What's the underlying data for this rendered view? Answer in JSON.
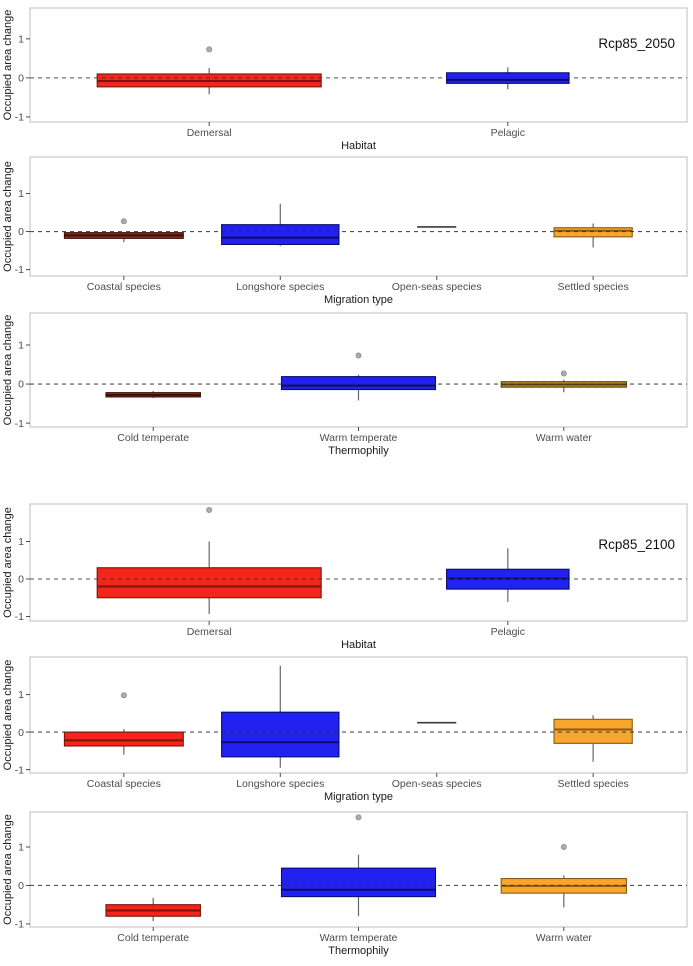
{
  "figure_title": "",
  "chart_data": [
    {
      "type": "boxplot",
      "id": "rcp85_2050_habitat",
      "annotation": "Rcp85_2050",
      "xlabel": "Habitat",
      "ylabel": "Occupied area change",
      "yticks": [
        -1,
        0,
        1
      ],
      "ylim": [
        -1.13,
        1.79
      ],
      "zero_line": 0,
      "grid": false,
      "categories": [
        "Demersal",
        "Pelagic"
      ],
      "boxes": [
        {
          "label": "Demersal",
          "fill": "#F2261B",
          "stroke": "#7E120C",
          "q1": -0.23,
          "median": -0.08,
          "q3": 0.1,
          "whisker_low": -0.42,
          "whisker_high": 0.25,
          "outliers": [
            0.73
          ],
          "width_frac": 0.75
        },
        {
          "label": "Pelagic",
          "fill": "#2222F0",
          "stroke": "#0A0A70",
          "q1": -0.14,
          "median": -0.05,
          "q3": 0.13,
          "whisker_low": -0.29,
          "whisker_high": 0.27,
          "outliers": [],
          "width_frac": 0.41
        }
      ]
    },
    {
      "type": "boxplot",
      "id": "rcp85_2050_migration",
      "annotation": null,
      "xlabel": "Migration type",
      "ylabel": "Occupied area change",
      "yticks": [
        -1,
        0,
        1
      ],
      "ylim": [
        -1.17,
        1.96
      ],
      "zero_line": 0,
      "grid": false,
      "categories": [
        "Coastal species",
        "Longshore species",
        "Open-seas species",
        "Settled species"
      ],
      "boxes": [
        {
          "label": "Coastal species",
          "fill": "#8B2F22",
          "stroke": "#3E0F08",
          "q1": -0.18,
          "median": -0.1,
          "q3": -0.03,
          "whisker_low": -0.28,
          "whisker_high": -0.01,
          "outliers": [
            0.27
          ],
          "width_frac": 0.76
        },
        {
          "label": "Longshore species",
          "fill": "#2222F0",
          "stroke": "#0A0A70",
          "q1": -0.34,
          "median": -0.16,
          "q3": 0.18,
          "whisker_low": -0.38,
          "whisker_high": 0.73,
          "outliers": [],
          "width_frac": 0.75
        },
        {
          "label": "Open-seas species",
          "fill": "none",
          "stroke": "#3A3A3A",
          "q1": 0.12,
          "median": 0.12,
          "q3": 0.12,
          "whisker_low": null,
          "whisker_high": null,
          "outliers": [],
          "width_frac": 0.25,
          "single_value": true
        },
        {
          "label": "Settled species",
          "fill": "#F7A630",
          "stroke": "#8A5B12",
          "q1": -0.14,
          "median": 0.02,
          "q3": 0.1,
          "whisker_low": -0.42,
          "whisker_high": 0.21,
          "outliers": [],
          "width_frac": 0.5
        }
      ]
    },
    {
      "type": "boxplot",
      "id": "rcp85_2050_thermophily",
      "annotation": null,
      "xlabel": "Thermophily",
      "ylabel": "Occupied area change",
      "yticks": [
        -1,
        0,
        1
      ],
      "ylim": [
        -1.1,
        1.82
      ],
      "zero_line": 0,
      "grid": false,
      "categories": [
        "Cold temperate",
        "Warm temperate",
        "Warm water"
      ],
      "boxes": [
        {
          "label": "Cold temperate",
          "fill": "#8B2F22",
          "stroke": "#3E0F08",
          "q1": -0.33,
          "median": -0.28,
          "q3": -0.22,
          "whisker_low": -0.36,
          "whisker_high": -0.18,
          "outliers": [],
          "width_frac": 0.46
        },
        {
          "label": "Warm temperate",
          "fill": "#2222F0",
          "stroke": "#0A0A70",
          "q1": -0.14,
          "median": -0.04,
          "q3": 0.19,
          "whisker_low": -0.42,
          "whisker_high": 0.24,
          "outliers": [
            0.73
          ],
          "width_frac": 0.75
        },
        {
          "label": "Warm water",
          "fill": "#C2902A",
          "stroke": "#5C430F",
          "q1": -0.08,
          "median": -0.01,
          "q3": 0.06,
          "whisker_low": -0.21,
          "whisker_high": 0.11,
          "outliers": [
            0.27
          ],
          "width_frac": 0.61
        }
      ]
    },
    {
      "type": "boxplot",
      "id": "rcp85_2100_habitat",
      "annotation": "Rcp85_2100",
      "xlabel": "Habitat",
      "ylabel": "Occupied area change",
      "yticks": [
        -1,
        0,
        1
      ],
      "ylim": [
        -1.12,
        2.0
      ],
      "zero_line": 0,
      "grid": false,
      "categories": [
        "Demersal",
        "Pelagic"
      ],
      "boxes": [
        {
          "label": "Demersal",
          "fill": "#F2261B",
          "stroke": "#7E120C",
          "q1": -0.5,
          "median": -0.2,
          "q3": 0.3,
          "whisker_low": -0.93,
          "whisker_high": 1.0,
          "outliers": [
            1.84
          ],
          "width_frac": 0.75
        },
        {
          "label": "Pelagic",
          "fill": "#2222F0",
          "stroke": "#0A0A70",
          "q1": -0.27,
          "median": 0.01,
          "q3": 0.26,
          "whisker_low": -0.61,
          "whisker_high": 0.82,
          "outliers": [],
          "width_frac": 0.41
        }
      ]
    },
    {
      "type": "boxplot",
      "id": "rcp85_2100_migration",
      "annotation": null,
      "xlabel": "Migration type",
      "ylabel": "Occupied area change",
      "yticks": [
        -1,
        0,
        1
      ],
      "ylim": [
        -1.09,
        2.0
      ],
      "zero_line": 0,
      "grid": false,
      "categories": [
        "Coastal species",
        "Longshore species",
        "Open-seas species",
        "Settled species"
      ],
      "boxes": [
        {
          "label": "Coastal species",
          "fill": "#F2261B",
          "stroke": "#7E120C",
          "q1": -0.37,
          "median": -0.22,
          "q3": 0.0,
          "whisker_low": -0.6,
          "whisker_high": 0.08,
          "outliers": [
            0.98
          ],
          "width_frac": 0.76
        },
        {
          "label": "Longshore species",
          "fill": "#2222F0",
          "stroke": "#0A0A70",
          "q1": -0.66,
          "median": -0.27,
          "q3": 0.53,
          "whisker_low": -0.95,
          "whisker_high": 1.77,
          "outliers": [],
          "width_frac": 0.75
        },
        {
          "label": "Open-seas species",
          "fill": "none",
          "stroke": "#3A3A3A",
          "q1": 0.25,
          "median": 0.25,
          "q3": 0.25,
          "whisker_low": null,
          "whisker_high": null,
          "outliers": [],
          "width_frac": 0.25,
          "single_value": true
        },
        {
          "label": "Settled species",
          "fill": "#F7A630",
          "stroke": "#8A5B12",
          "q1": -0.3,
          "median": 0.07,
          "q3": 0.34,
          "whisker_low": -0.79,
          "whisker_high": 0.45,
          "outliers": [],
          "width_frac": 0.5
        }
      ]
    },
    {
      "type": "boxplot",
      "id": "rcp85_2100_thermophily",
      "annotation": null,
      "xlabel": "Thermophily",
      "ylabel": "Occupied area change",
      "yticks": [
        -1,
        0,
        1
      ],
      "ylim": [
        -1.08,
        1.91
      ],
      "zero_line": 0,
      "grid": false,
      "categories": [
        "Cold temperate",
        "Warm temperate",
        "Warm water"
      ],
      "boxes": [
        {
          "label": "Cold temperate",
          "fill": "#F2261B",
          "stroke": "#7E120C",
          "q1": -0.8,
          "median": -0.65,
          "q3": -0.5,
          "whisker_low": -0.93,
          "whisker_high": -0.32,
          "outliers": [],
          "width_frac": 0.46
        },
        {
          "label": "Warm temperate",
          "fill": "#2222F0",
          "stroke": "#0A0A70",
          "q1": -0.29,
          "median": -0.11,
          "q3": 0.45,
          "whisker_low": -0.8,
          "whisker_high": 0.8,
          "outliers": [
            1.77
          ],
          "width_frac": 0.75
        },
        {
          "label": "Warm water",
          "fill": "#F7A630",
          "stroke": "#8A5B12",
          "q1": -0.2,
          "median": -0.01,
          "q3": 0.18,
          "whisker_low": -0.57,
          "whisker_high": 0.26,
          "outliers": [
            1.0
          ],
          "width_frac": 0.61
        }
      ]
    }
  ],
  "style": {
    "panel_border_color": "#C9C9C9",
    "whisker_color": "#666666",
    "outlier_fill": "#ABABAB",
    "outlier_stroke": "#8F8F8F",
    "zero_line_color": "#333333",
    "tick_color": "#4D4D4D",
    "tick_label_color": "#4D4D4D",
    "axis_title_color": "#1A1A1A",
    "annotation_color": "#111111"
  }
}
